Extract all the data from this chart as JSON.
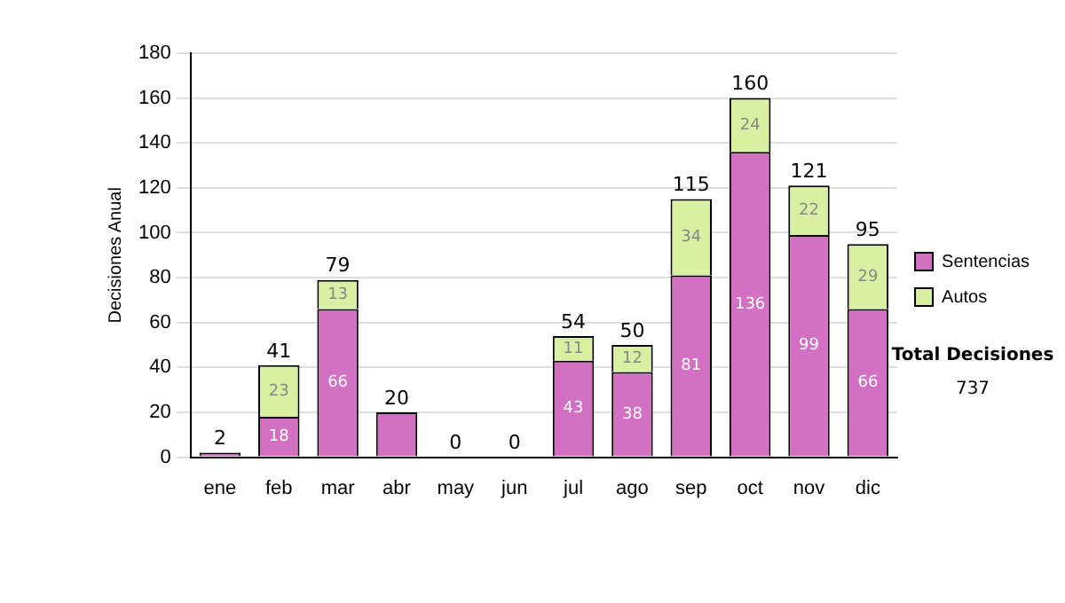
{
  "chart_data": {
    "type": "bar",
    "stacked": true,
    "ylabel": "Decisiones Anual",
    "categories": [
      "ene",
      "feb",
      "mar",
      "abr",
      "may",
      "jun",
      "jul",
      "ago",
      "sep",
      "oct",
      "nov",
      "dic"
    ],
    "series": [
      {
        "name": "Sentencias",
        "color": "#d470c4",
        "values": [
          2,
          18,
          66,
          20,
          0,
          0,
          43,
          38,
          81,
          136,
          99,
          66
        ],
        "value_labels": [
          null,
          "18",
          "66",
          null,
          null,
          null,
          "43",
          "38",
          "81",
          "136",
          "99",
          "66"
        ]
      },
      {
        "name": "Autos",
        "color": "#d9f0a3",
        "values": [
          0,
          23,
          13,
          0,
          0,
          0,
          11,
          12,
          34,
          24,
          22,
          29
        ],
        "value_labels": [
          null,
          "23",
          "13",
          null,
          null,
          null,
          "11",
          "12",
          "34",
          "24",
          "22",
          "29"
        ]
      }
    ],
    "totals": [
      "2",
      "41",
      "79",
      "20",
      "0",
      "0",
      "54",
      "50",
      "115",
      "160",
      "121",
      "95"
    ],
    "ylim": [
      0,
      180
    ],
    "yticks": [
      0,
      20,
      40,
      60,
      80,
      100,
      120,
      140,
      160,
      180
    ],
    "grid": "y",
    "legend": "right",
    "annotations": [
      "Total Decisiones",
      "737"
    ]
  }
}
